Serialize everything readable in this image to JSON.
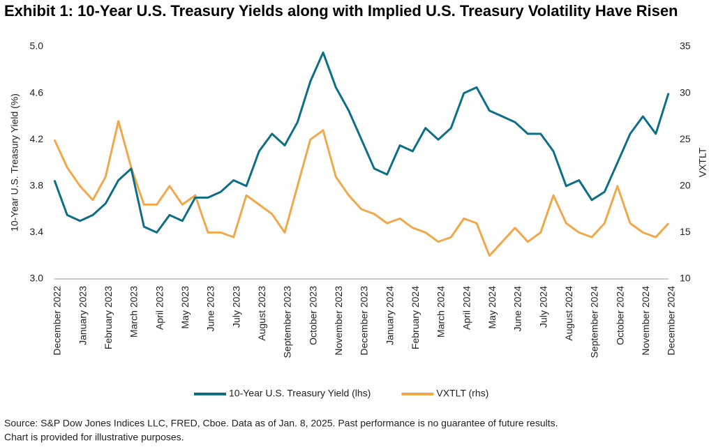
{
  "chart_data": {
    "type": "line",
    "title": "Exhibit 1: 10-Year U.S. Treasury Yields along with Implied U.S. Treasury Volatility Have Risen",
    "y_label": "10-Year U.S. Treasury Yield (%)",
    "y2_label": "VXTLT",
    "source": [
      "Source: S&P Dow Jones Indices LLC, FRED, Cboe. Data as of Jan. 8, 2025. Past performance is no guarantee of future results.",
      "Chart is provided for illustrative purposes."
    ],
    "categories": [
      "December 2022",
      null,
      "January 2023",
      null,
      "February 2023",
      null,
      "March 2023",
      null,
      "April 2023",
      null,
      "May 2023",
      null,
      "June 2023",
      null,
      "July 2023",
      null,
      "August 2023",
      null,
      "September 2023",
      null,
      "October 2023",
      null,
      "November 2023",
      null,
      "December 2023",
      null,
      "January 2024",
      null,
      "February 2024",
      null,
      "March 2024",
      null,
      "April 2024",
      null,
      "May 2024",
      null,
      "June 2024",
      null,
      "July 2024",
      null,
      "August 2024",
      null,
      "September 2024",
      null,
      "October 2024",
      null,
      "November 2024",
      null,
      "December 2024"
    ],
    "series": [
      {
        "name": "10-Year U.S. Treasury Yield (lhs)",
        "color": "#0e6e86",
        "values": [
          3.85,
          3.55,
          3.5,
          3.55,
          3.65,
          3.85,
          3.95,
          3.45,
          3.4,
          3.55,
          3.5,
          3.7,
          3.7,
          3.75,
          3.85,
          3.8,
          4.1,
          4.25,
          4.15,
          4.35,
          4.7,
          4.95,
          4.65,
          4.45,
          4.2,
          3.95,
          3.9,
          4.15,
          4.1,
          4.3,
          4.2,
          4.3,
          4.6,
          4.65,
          4.45,
          4.4,
          4.35,
          4.25,
          4.25,
          4.1,
          3.8,
          3.85,
          3.68,
          3.75,
          4.0,
          4.25,
          4.4,
          4.25,
          4.6
        ]
      },
      {
        "name": "VXTLT (rhs)",
        "color": "#f0a84a",
        "axis": "y2",
        "values": [
          25,
          22,
          20,
          18.5,
          21,
          27,
          22,
          18,
          18,
          20,
          18,
          19,
          15,
          15,
          14.5,
          19,
          18,
          17,
          15,
          20,
          25,
          26,
          21,
          19,
          17.5,
          17,
          16,
          16.5,
          15.5,
          15,
          14,
          14.5,
          16.5,
          16,
          12.5,
          14,
          15.5,
          14,
          15,
          19,
          16,
          15,
          14.5,
          16,
          20,
          16,
          15,
          14.5,
          16
        ]
      }
    ],
    "ylim": [
      3.0,
      5.0
    ],
    "yticks": [
      {
        "value": 3,
        "label": "3.0"
      },
      3.4,
      3.8,
      4.2,
      4.6,
      {
        "value": 5,
        "label": "5.0"
      }
    ],
    "y2lim": [
      10,
      35
    ],
    "y2ticks": [
      10,
      15,
      20,
      25,
      30,
      35
    ],
    "legend": "bottom"
  }
}
